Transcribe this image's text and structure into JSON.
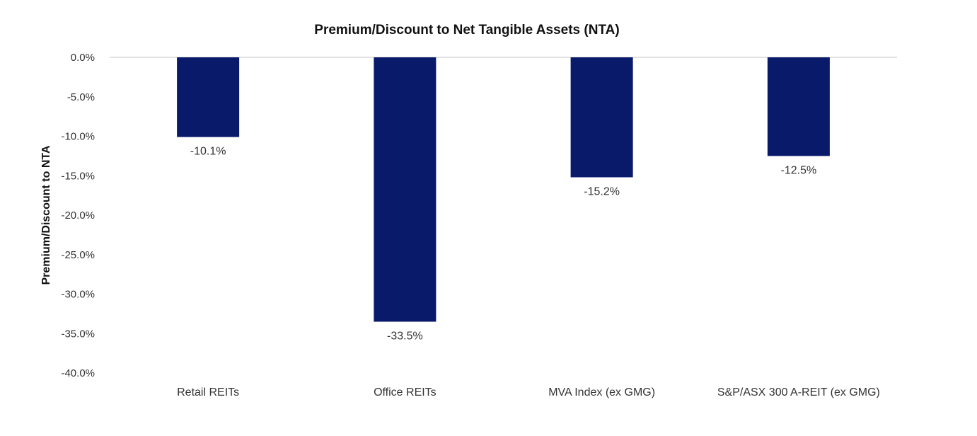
{
  "chart_data": {
    "type": "bar",
    "title": "Premium/Discount to Net Tangible Assets (NTA)",
    "ylabel": "Premium/Discount to NTA",
    "xlabel": "",
    "categories": [
      "Retail REITs",
      "Office REITs",
      "MVA Index (ex GMG)",
      "S&P/ASX 300 A-REIT (ex GMG)"
    ],
    "values": [
      -10.1,
      -33.5,
      -15.2,
      -12.5
    ],
    "data_labels": [
      "-10.1%",
      "-33.5%",
      "-15.2%",
      "-12.5%"
    ],
    "ylim": [
      -40,
      0
    ],
    "yticks": [
      0,
      -5,
      -10,
      -15,
      -20,
      -25,
      -30,
      -35,
      -40
    ],
    "ytick_labels": [
      "0.0%",
      "-5.0%",
      "-10.0%",
      "-15.0%",
      "-20.0%",
      "-25.0%",
      "-30.0%",
      "-35.0%",
      "-40.0%"
    ],
    "bar_color": "#0a1a6b",
    "grid": false,
    "legend": "none"
  }
}
